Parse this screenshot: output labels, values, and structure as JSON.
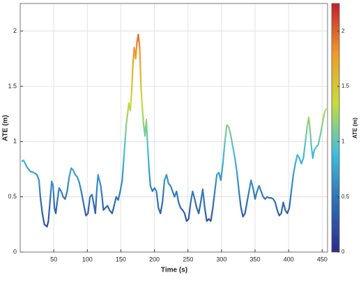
{
  "chart_data": {
    "type": "line",
    "x_label": "Time (s)",
    "y_label": "ATE (m)",
    "colorbar_label": "ATE (m)",
    "xlim": [
      0,
      458
    ],
    "ylim": [
      0,
      2.25
    ],
    "xticks": [
      50,
      100,
      150,
      200,
      250,
      300,
      350,
      400,
      450
    ],
    "yticks": [
      0,
      0.5,
      1,
      1.5,
      2
    ],
    "clim": [
      0,
      2.25
    ],
    "cticks": [
      0,
      0.5,
      1,
      1.5,
      2
    ],
    "colormap": [
      "#2b2c8c",
      "#2f6eb5",
      "#41bfdc",
      "#c7dc3a",
      "#f09a2a",
      "#c4202b"
    ],
    "grid": true,
    "x": [
      2,
      5,
      10,
      15,
      20,
      25,
      28,
      30,
      33,
      36,
      40,
      42,
      45,
      47,
      49,
      51,
      53,
      55,
      58,
      61,
      64,
      67,
      70,
      73,
      76,
      79,
      82,
      85,
      88,
      91,
      95,
      98,
      101,
      104,
      107,
      110,
      112,
      114,
      116,
      118,
      120,
      122,
      124,
      127,
      130,
      133,
      137,
      140,
      143,
      146,
      149,
      152,
      155,
      158,
      160,
      162,
      164,
      166,
      168,
      170,
      172,
      174,
      176,
      178,
      180,
      182,
      184,
      186,
      188,
      190,
      192,
      194,
      197,
      200,
      203,
      206,
      209,
      212,
      215,
      218,
      221,
      224,
      227,
      230,
      233,
      236,
      239,
      242,
      245,
      248,
      251,
      254,
      257,
      260,
      263,
      266,
      269,
      272,
      275,
      278,
      281,
      284,
      287,
      290,
      293,
      296,
      299,
      302,
      305,
      308,
      311,
      314,
      317,
      320,
      323,
      326,
      329,
      332,
      335,
      338,
      341,
      344,
      347,
      350,
      353,
      356,
      359,
      362,
      365,
      368,
      371,
      374,
      377,
      380,
      383,
      386,
      389,
      392,
      395,
      398,
      401,
      404,
      407,
      410,
      413,
      416,
      419,
      422,
      425,
      428,
      430,
      432,
      434,
      436,
      438,
      441,
      444,
      447,
      450,
      453,
      456
    ],
    "values": [
      0.82,
      0.83,
      0.77,
      0.73,
      0.72,
      0.7,
      0.65,
      0.5,
      0.35,
      0.25,
      0.23,
      0.28,
      0.5,
      0.64,
      0.6,
      0.4,
      0.35,
      0.45,
      0.58,
      0.55,
      0.5,
      0.48,
      0.55,
      0.68,
      0.76,
      0.74,
      0.7,
      0.68,
      0.63,
      0.55,
      0.42,
      0.33,
      0.35,
      0.5,
      0.52,
      0.42,
      0.35,
      0.55,
      0.7,
      0.65,
      0.6,
      0.5,
      0.38,
      0.4,
      0.42,
      0.38,
      0.35,
      0.42,
      0.5,
      0.47,
      0.55,
      0.65,
      0.9,
      1.15,
      1.25,
      1.35,
      1.28,
      1.45,
      1.7,
      1.85,
      1.75,
      1.9,
      1.97,
      1.85,
      1.5,
      1.3,
      1.15,
      1.05,
      1.2,
      0.95,
      0.75,
      0.6,
      0.55,
      0.58,
      0.55,
      0.4,
      0.35,
      0.45,
      0.65,
      0.7,
      0.62,
      0.6,
      0.55,
      0.5,
      0.55,
      0.45,
      0.4,
      0.38,
      0.35,
      0.28,
      0.3,
      0.45,
      0.55,
      0.48,
      0.4,
      0.35,
      0.45,
      0.57,
      0.4,
      0.28,
      0.3,
      0.28,
      0.4,
      0.55,
      0.7,
      0.72,
      0.65,
      0.8,
      1.0,
      1.15,
      1.13,
      1.05,
      0.95,
      0.85,
      0.72,
      0.55,
      0.4,
      0.32,
      0.35,
      0.45,
      0.55,
      0.65,
      0.58,
      0.48,
      0.55,
      0.6,
      0.55,
      0.5,
      0.48,
      0.5,
      0.49,
      0.49,
      0.48,
      0.45,
      0.38,
      0.33,
      0.35,
      0.45,
      0.38,
      0.35,
      0.4,
      0.55,
      0.7,
      0.8,
      0.88,
      0.85,
      0.8,
      0.85,
      1.0,
      1.15,
      1.22,
      1.1,
      0.95,
      0.85,
      0.92,
      0.95,
      0.97,
      1.05,
      1.15,
      1.25,
      1.3
    ]
  }
}
